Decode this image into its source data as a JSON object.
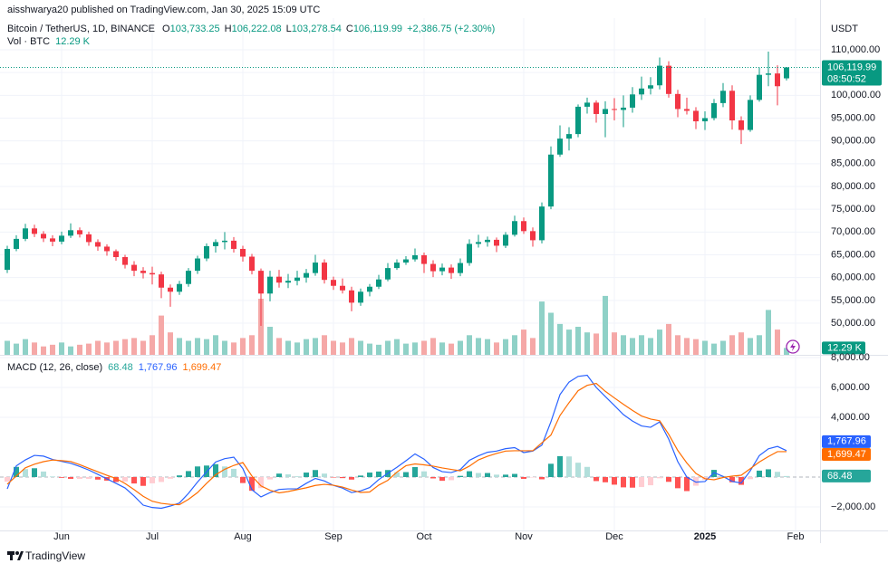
{
  "chart_data": [
    {
      "type": "candlestick",
      "header": "aisshwarya20 published on TradingView.com, Jan 30, 2025 15:09 UTC",
      "title": "Bitcoin / TetherUS, 1D, BINANCE",
      "legend": [
        {
          "label": "O",
          "value": "103,733.25"
        },
        {
          "label": "H",
          "value": "106,222.08"
        },
        {
          "label": "L",
          "value": "103,278.54"
        },
        {
          "label": "C",
          "value": "106,119.99"
        }
      ],
      "change": "+2,386.75 (+2.30%)",
      "volume_title": "Vol · BTC",
      "volume_value": "12.29 K",
      "axis_unit": "USDT",
      "countdown": "08:50:52",
      "footer": "TradingView",
      "up_color": "#089981",
      "down_color": "#f23645",
      "volume_up_color": "#8fd1c7",
      "volume_down_color": "#f5a8a7",
      "categories": [
        null,
        null,
        null,
        null,
        null,
        null,
        "Jun",
        null,
        null,
        null,
        null,
        null,
        null,
        null,
        null,
        null,
        "Jul",
        null,
        null,
        null,
        null,
        null,
        null,
        null,
        null,
        null,
        "Aug",
        null,
        null,
        null,
        null,
        null,
        null,
        null,
        null,
        null,
        "Sep",
        null,
        null,
        null,
        null,
        null,
        null,
        null,
        null,
        null,
        "Oct",
        null,
        null,
        null,
        null,
        null,
        null,
        null,
        null,
        null,
        null,
        "Nov",
        null,
        null,
        null,
        null,
        null,
        null,
        null,
        null,
        null,
        "Dec",
        null,
        null,
        null,
        null,
        null,
        null,
        null,
        null,
        null,
        "2025",
        null,
        null,
        null,
        null,
        null,
        null,
        null,
        null,
        null,
        "Feb"
      ],
      "open": [
        61700,
        66300,
        68500,
        70800,
        69600,
        68600,
        67900,
        69200,
        70400,
        69500,
        67800,
        66800,
        65800,
        64500,
        62800,
        61500,
        61000,
        60700,
        57800,
        56900,
        58600,
        61500,
        64200,
        66900,
        67800,
        68100,
        66300,
        64600,
        61500,
        56500,
        60200,
        58900,
        59300,
        60000,
        61000,
        63300,
        59500,
        58200,
        57200,
        54500,
        56900,
        58000,
        59600,
        62100,
        63300,
        64000,
        64900,
        63000,
        61400,
        62200,
        61000,
        63200,
        67400,
        67800,
        68300,
        67000,
        69400,
        72400,
        70200,
        68200,
        75600,
        87000,
        90500,
        91500,
        97500,
        98400,
        95900,
        97000,
        96800,
        97300,
        100200,
        101500,
        102200,
        106500,
        100300,
        97000,
        96600,
        94300,
        95000,
        98300,
        101000,
        94500,
        92400,
        99000,
        104500,
        104800,
        103733.25,
        null
      ],
      "high": [
        67000,
        69300,
        71800,
        71600,
        70200,
        69300,
        70100,
        71900,
        71000,
        70100,
        68400,
        67300,
        66200,
        65000,
        63600,
        62300,
        62400,
        61300,
        58500,
        59300,
        62100,
        64800,
        67500,
        68400,
        70000,
        68900,
        67000,
        65200,
        62000,
        61500,
        61700,
        60800,
        61500,
        61900,
        65000,
        64000,
        60200,
        59800,
        58000,
        57600,
        58600,
        60600,
        63200,
        64000,
        64700,
        66400,
        65500,
        63800,
        63100,
        62900,
        64200,
        68400,
        69400,
        69000,
        68800,
        70000,
        73600,
        73200,
        71000,
        76500,
        88800,
        93400,
        93000,
        98000,
        99500,
        98900,
        98700,
        99400,
        100000,
        101800,
        104100,
        104000,
        108300,
        107500,
        101200,
        99500,
        97400,
        96500,
        99200,
        102700,
        102200,
        95400,
        100000,
        106100,
        109600,
        106600,
        106222.08,
        null
      ],
      "low": [
        61000,
        65800,
        68000,
        68900,
        67800,
        66900,
        67300,
        68700,
        68800,
        67000,
        65900,
        64800,
        63700,
        62000,
        60300,
        59800,
        58500,
        55500,
        53600,
        56200,
        58000,
        60800,
        63600,
        65500,
        66200,
        65500,
        63500,
        60700,
        49400,
        54800,
        57800,
        57700,
        58300,
        58900,
        60400,
        58700,
        57300,
        56500,
        52600,
        53800,
        55900,
        57500,
        59200,
        61700,
        62800,
        63500,
        61000,
        60100,
        60500,
        59700,
        60300,
        62600,
        66600,
        66800,
        65600,
        66500,
        69000,
        69600,
        66800,
        67500,
        75000,
        86500,
        87900,
        90800,
        96000,
        94000,
        90800,
        94500,
        93000,
        96200,
        99000,
        100200,
        101300,
        99500,
        95200,
        95800,
        92600,
        92400,
        94500,
        97400,
        92500,
        89300,
        92000,
        98600,
        102000,
        97800,
        103278.54,
        null
      ],
      "close": [
        66300,
        68500,
        70800,
        69600,
        68600,
        67900,
        69200,
        70400,
        69500,
        67800,
        66800,
        65800,
        64500,
        62800,
        61500,
        61000,
        60700,
        57800,
        56900,
        58600,
        61500,
        64200,
        66900,
        67800,
        68100,
        66300,
        64600,
        61500,
        56500,
        60200,
        58900,
        59300,
        60000,
        61000,
        63300,
        59500,
        58200,
        57200,
        54500,
        56900,
        58000,
        59600,
        62100,
        63300,
        64000,
        64900,
        63000,
        61400,
        62200,
        61000,
        63200,
        67400,
        67800,
        68300,
        67000,
        69400,
        72400,
        70200,
        68200,
        75600,
        87000,
        90500,
        91500,
        97500,
        98400,
        95900,
        97000,
        96800,
        97300,
        100200,
        101500,
        102200,
        106500,
        100300,
        97000,
        96600,
        94300,
        95000,
        98300,
        101000,
        94500,
        92400,
        99000,
        104500,
        104800,
        102000,
        106119.99,
        null
      ],
      "volume": [
        25,
        20,
        28,
        22,
        15,
        18,
        22,
        15,
        18,
        20,
        25,
        22,
        25,
        28,
        30,
        25,
        35,
        70,
        40,
        30,
        25,
        30,
        28,
        35,
        25,
        22,
        30,
        35,
        100,
        50,
        30,
        25,
        22,
        28,
        30,
        35,
        25,
        22,
        30,
        25,
        20,
        18,
        25,
        28,
        20,
        22,
        25,
        30,
        22,
        20,
        25,
        35,
        30,
        28,
        22,
        28,
        35,
        45,
        30,
        95,
        75,
        55,
        45,
        50,
        40,
        38,
        105,
        40,
        35,
        30,
        35,
        30,
        45,
        55,
        35,
        30,
        28,
        25,
        20,
        25,
        35,
        40,
        30,
        35,
        80,
        45,
        12.29,
        null
      ],
      "ylim": [
        43050,
        116950
      ],
      "yticks": [
        {
          "value": 50000,
          "label": "50,000.00"
        },
        {
          "value": 55000,
          "label": "55,000.00"
        },
        {
          "value": 60000,
          "label": "60,000.00"
        },
        {
          "value": 65000,
          "label": "65,000.00"
        },
        {
          "value": 70000,
          "label": "70,000.00"
        },
        {
          "value": 75000,
          "label": "75,000.00"
        },
        {
          "value": 80000,
          "label": "80,000.00"
        },
        {
          "value": 85000,
          "label": "85,000.00"
        },
        {
          "value": 90000,
          "label": "90,000.00"
        },
        {
          "value": 95000,
          "label": "95,000.00"
        },
        {
          "value": 100000,
          "label": "100,000.00"
        },
        {
          "value": 105000,
          "label": "105,000.00"
        },
        {
          "value": 110000,
          "label": "110,000.00"
        }
      ],
      "volume_ylim": [
        0,
        600
      ],
      "grid": true
    },
    {
      "type": "macd",
      "title": "MACD (12, 26, close)",
      "legend": [
        "68.48",
        "1,767.96",
        "1,699.47"
      ],
      "histogram": {
        "colors": [
          "#26a69a",
          "#b2dfdb",
          "#ff5252",
          "#ffcdd2"
        ],
        "values": [
          -310,
          680,
          530,
          590,
          370,
          40,
          -50,
          -120,
          -120,
          -120,
          -170,
          -240,
          -330,
          -300,
          -430,
          -590,
          -420,
          -330,
          -110,
          110,
          400,
          710,
          770,
          860,
          710,
          550,
          -400,
          -920,
          -740,
          -160,
          230,
          180,
          50,
          300,
          470,
          230,
          -10,
          -70,
          -170,
          100,
          300,
          370,
          470,
          320,
          330,
          670,
          380,
          -90,
          -250,
          -210,
          80,
          390,
          270,
          270,
          160,
          160,
          210,
          -120,
          -20,
          -150,
          890,
          1400,
          1380,
          960,
          680,
          -270,
          -350,
          -510,
          -690,
          -710,
          -670,
          -550,
          -80,
          -320,
          -750,
          -940,
          -580,
          -190,
          480,
          70,
          -350,
          -520,
          -140,
          430,
          520,
          350,
          68.48,
          null
        ]
      },
      "macd_line": {
        "color": "#2962ff",
        "values": [
          -790,
          750,
          1150,
          1450,
          1400,
          1180,
          1050,
          920,
          710,
          470,
          180,
          -120,
          -420,
          -730,
          -1270,
          -1880,
          -2040,
          -2090,
          -1940,
          -1740,
          -1090,
          -330,
          350,
          1010,
          1230,
          1330,
          570,
          -850,
          -1330,
          -1040,
          -830,
          -790,
          -790,
          -420,
          -90,
          -260,
          -560,
          -740,
          -1040,
          -930,
          -700,
          -170,
          250,
          650,
          1090,
          1550,
          1200,
          640,
          360,
          300,
          500,
          1120,
          1420,
          1660,
          1740,
          1900,
          1970,
          1640,
          1740,
          2140,
          3700,
          5520,
          6360,
          6740,
          6820,
          6000,
          5390,
          4790,
          4180,
          3750,
          3420,
          3330,
          3690,
          2540,
          1030,
          0,
          -340,
          -300,
          300,
          40,
          -290,
          -400,
          420,
          1440,
          1890,
          2050,
          1767.96,
          null
        ]
      },
      "signal_line": {
        "color": "#ff6d00",
        "values": [
          -480,
          70,
          620,
          860,
          1030,
          1140,
          1100,
          1040,
          830,
          590,
          350,
          120,
          -90,
          -430,
          -840,
          -1290,
          -1620,
          -1760,
          -1830,
          -1850,
          -1490,
          -1040,
          -420,
          150,
          520,
          780,
          970,
          70,
          -590,
          -880,
          -1060,
          -970,
          -840,
          -720,
          -560,
          -490,
          -550,
          -670,
          -870,
          -1030,
          -1000,
          -540,
          -220,
          330,
          760,
          880,
          820,
          730,
          610,
          510,
          420,
          730,
          1150,
          1390,
          1580,
          1740,
          1760,
          1760,
          1760,
          2290,
          2810,
          4120,
          4980,
          5780,
          6140,
          6270,
          5740,
          5300,
          4870,
          4460,
          4090,
          3880,
          3770,
          2860,
          1780,
          940,
          240,
          -110,
          -180,
          -30,
          60,
          120,
          560,
          1010,
          1370,
          1700,
          1699.47,
          null
        ]
      },
      "ylim": [
        -3515,
        8000
      ],
      "yticks": [
        {
          "value": -2000,
          "label": "−2,000.00"
        },
        {
          "value": 4000,
          "label": "4,000.00"
        },
        {
          "value": 6000,
          "label": "6,000.00"
        },
        {
          "value": 8000,
          "label": "8,000.00"
        }
      ]
    }
  ]
}
